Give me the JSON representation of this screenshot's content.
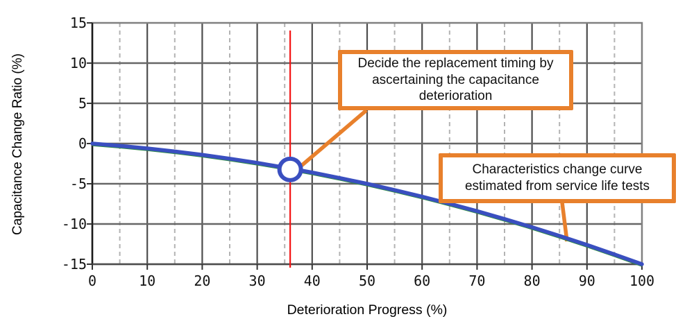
{
  "chart_data": {
    "type": "line",
    "title": "",
    "xlabel": "Deterioration Progress (%)",
    "ylabel": "Capacitance Change Ratio (%)",
    "xlim": [
      0,
      100
    ],
    "ylim": [
      -15,
      15
    ],
    "xticks": [
      0,
      10,
      20,
      30,
      40,
      50,
      60,
      70,
      80,
      90,
      100
    ],
    "yticks": [
      15,
      10,
      5,
      0,
      -5,
      -10,
      -15
    ],
    "x_minor_ticks": [
      5,
      15,
      25,
      35,
      45,
      55,
      65,
      75,
      85,
      95
    ],
    "grid": "on",
    "series": [
      {
        "name": "service-life-estimate-green",
        "color": "#2f8b47",
        "x": [
          0,
          5,
          10,
          15,
          20,
          25,
          30,
          35,
          40,
          45,
          50,
          55,
          60,
          65,
          70,
          75,
          80,
          85,
          90,
          95,
          100
        ],
        "y": [
          0,
          -0.28,
          -0.6,
          -0.98,
          -1.4,
          -1.88,
          -2.4,
          -2.98,
          -3.6,
          -4.28,
          -5,
          -5.78,
          -6.6,
          -7.48,
          -8.4,
          -9.38,
          -10.4,
          -11.48,
          -12.6,
          -13.78,
          -15
        ]
      },
      {
        "name": "service-life-estimate-blue",
        "color": "#3a4fc0",
        "x": [
          0,
          5,
          10,
          15,
          20,
          25,
          30,
          35,
          40,
          45,
          50,
          55,
          60,
          65,
          70,
          75,
          80,
          85,
          90,
          95,
          100
        ],
        "y": [
          0,
          -0.28,
          -0.6,
          -0.98,
          -1.4,
          -1.88,
          -2.4,
          -2.98,
          -3.6,
          -4.28,
          -5,
          -5.78,
          -6.6,
          -7.48,
          -8.4,
          -9.38,
          -10.4,
          -11.48,
          -12.6,
          -13.78,
          -15
        ]
      }
    ],
    "marker": {
      "x": 36,
      "y": -3.22
    },
    "reference_line_x": 36,
    "annotations": [
      {
        "text": "Decide the replacement timing by ascertaining the capacitance deterioration"
      },
      {
        "text": "Characteristics change curve estimated from service life tests"
      }
    ],
    "legend": "none"
  },
  "colors": {
    "callout_orange": "#e8802c",
    "reference_red": "#f41414",
    "grid_major": "#4d4d4d",
    "grid_minor": "#b3b3b3",
    "border_gray": "#808080",
    "marker_ring_blue": "#3a4fc0"
  }
}
